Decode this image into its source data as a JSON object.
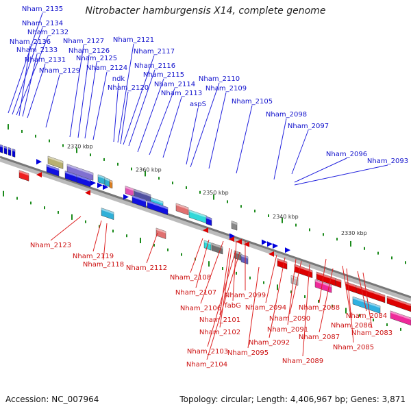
{
  "title": "Nitrobacter hamburgensis X14, complete genome",
  "footer": {
    "accession": "Accession: NC_007964",
    "topology": "Topology: circular; Length: 4,406,967 bp; Genes: 3,871"
  },
  "colors": {
    "forward_gene": "#0000dd",
    "reverse_gene": "#dd0000",
    "tick": "#1a8a1a",
    "genome_line": "#888888"
  },
  "scale_labels": [
    "2370 kbp",
    "2360 kbp",
    "2350 kbp",
    "2340 kbp",
    "2330 kbp"
  ],
  "forward_labels": [
    "Nham_2135",
    "Nham_2134",
    "Nham_2132",
    "Nham_2136",
    "Nham_2133",
    "Nham_2131",
    "Nham_2129",
    "Nham_2127",
    "Nham_2126",
    "Nham_2125",
    "Nham_2124",
    "Nham_2121",
    "Nham_2117",
    "Nham_2116",
    "ndk",
    "Nham_2120",
    "Nham_2115",
    "Nham_2114",
    "Nham_2113",
    "Nham_2110",
    "Nham_2109",
    "aspS",
    "Nham_2105",
    "Nham_2098",
    "Nham_2097",
    "Nham_2096",
    "Nham_2093"
  ],
  "reverse_labels": [
    "Nham_2123",
    "Nham_2119",
    "Nham_2118",
    "Nham_2112",
    "Nham_2108",
    "Nham_2107",
    "Nham_2106",
    "fabG",
    "Nham_2099",
    "Nham_2101",
    "Nham_2102",
    "Nham_2103",
    "Nham_2104",
    "Nham_2095",
    "Nham_2094",
    "Nham_2092",
    "Nham_2091",
    "Nham_2090",
    "Nham_2089",
    "Nham_2088",
    "Nham_2087",
    "Nham_2086",
    "Nham_2085",
    "Nham_2084",
    "Nham_2083"
  ]
}
